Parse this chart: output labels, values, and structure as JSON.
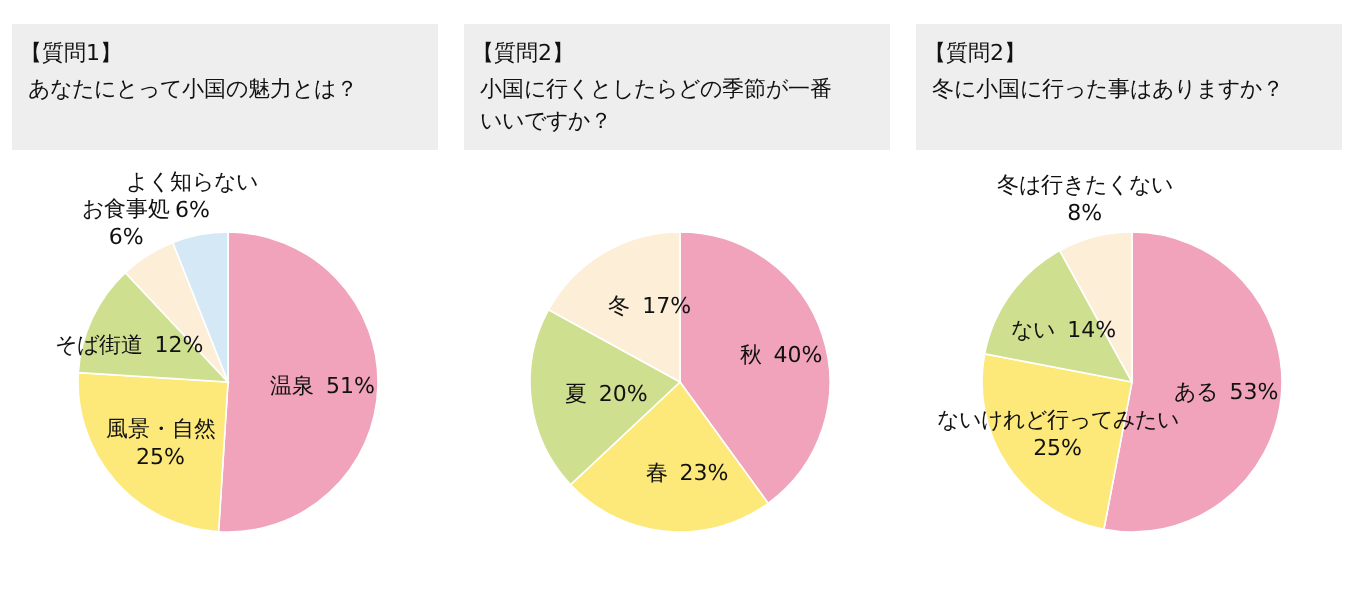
{
  "chart_data": [
    {
      "type": "pie",
      "title": "【質問1】",
      "subtitle": "あなたにとって小国の魅力とは？",
      "categories": [
        "温泉",
        "風景・自然",
        "そば街道",
        "お食事処",
        "よく知らない"
      ],
      "values": [
        51,
        25,
        12,
        6,
        6
      ],
      "colors": [
        "#f0a3bb",
        "#fde97a",
        "#cfdf90",
        "#fdeed8",
        "#d4e9f5"
      ],
      "value_labels": [
        "51%",
        "25%",
        "12%",
        "6%",
        "6%"
      ]
    },
    {
      "type": "pie",
      "title": "【質問2】",
      "subtitle": "小国に行くとしたらどの季節が一番いいですか？",
      "categories": [
        "秋",
        "春",
        "夏",
        "冬"
      ],
      "values": [
        40,
        23,
        20,
        17
      ],
      "colors": [
        "#f0a3bb",
        "#fde97a",
        "#cfdf90",
        "#fdeed8"
      ],
      "value_labels": [
        "40%",
        "23%",
        "20%",
        "17%"
      ]
    },
    {
      "type": "pie",
      "title": "【質問2】",
      "subtitle": "冬に小国に行った事はありますか？",
      "categories": [
        "ある",
        "ないけれど行ってみたい",
        "ない",
        "冬は行きたくない"
      ],
      "values": [
        53,
        25,
        14,
        8
      ],
      "colors": [
        "#f0a3bb",
        "#fde97a",
        "#cfdf90",
        "#fdeed8"
      ],
      "value_labels": [
        "53%",
        "25%",
        "14%",
        "8%"
      ]
    }
  ]
}
